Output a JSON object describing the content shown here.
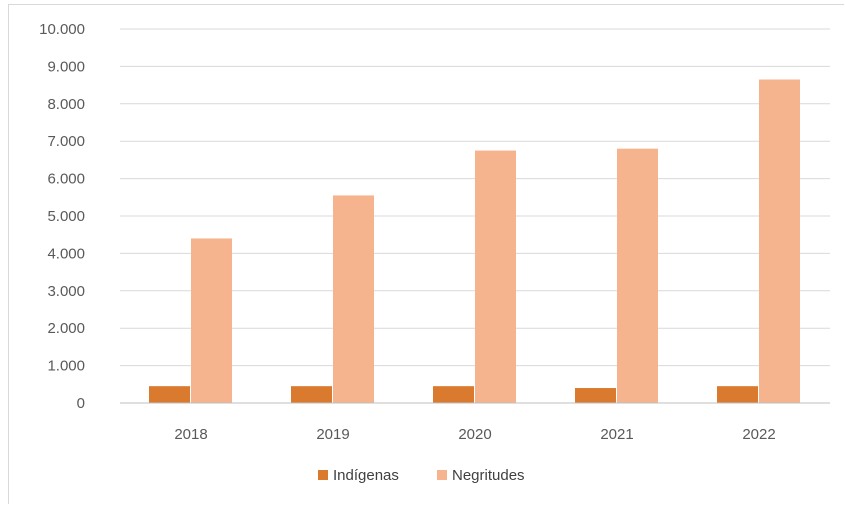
{
  "chart_data": {
    "type": "bar",
    "categories": [
      "2018",
      "2019",
      "2020",
      "2021",
      "2022"
    ],
    "series": [
      {
        "name": "Indígenas",
        "values": [
          450,
          450,
          450,
          400,
          450
        ],
        "color": "#d97a2f"
      },
      {
        "name": "Negritudes",
        "values": [
          4400,
          5550,
          6750,
          6800,
          8650
        ],
        "color": "#f6b48e"
      }
    ],
    "y_ticks": [
      "0",
      "1.000",
      "2.000",
      "3.000",
      "4.000",
      "5.000",
      "6.000",
      "7.000",
      "8.000",
      "9.000",
      "10.000"
    ],
    "ylim": [
      0,
      10000
    ],
    "grid": true,
    "legend_position": "bottom"
  }
}
